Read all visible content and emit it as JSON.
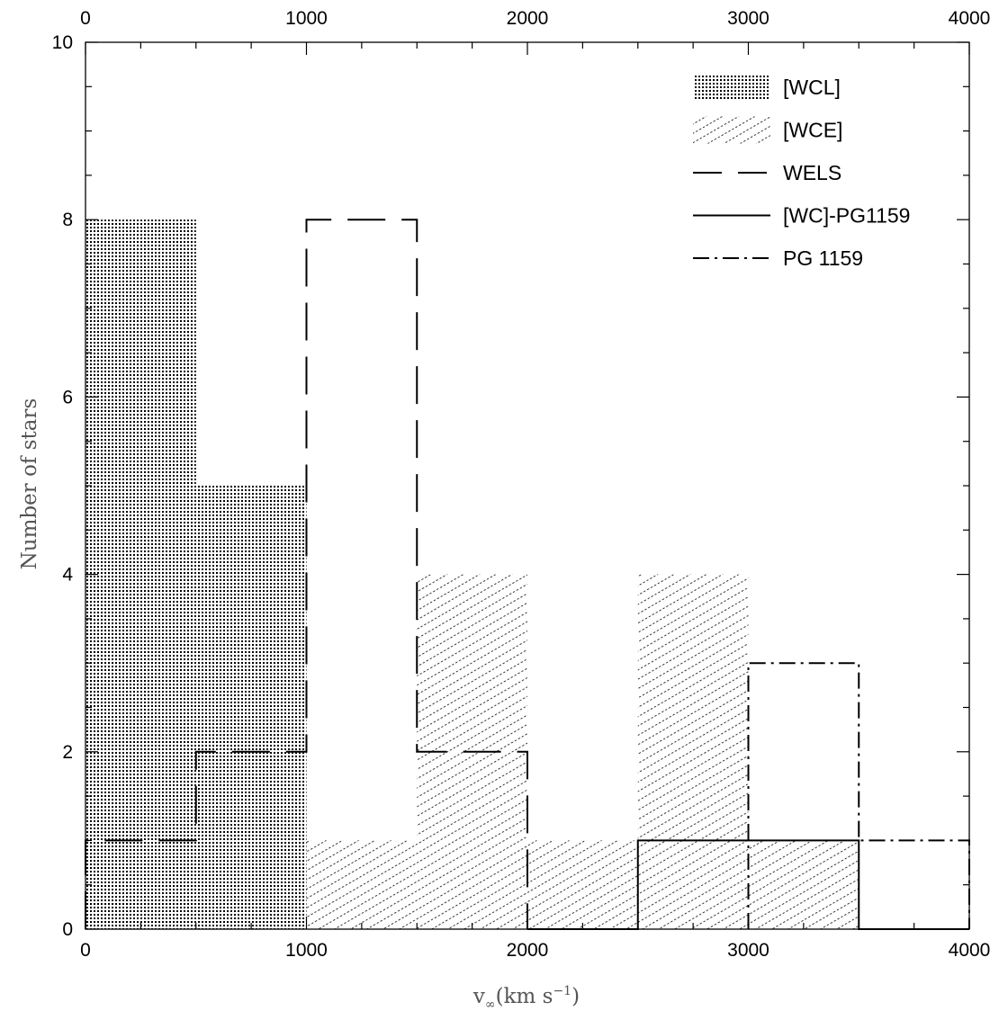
{
  "chart_data": {
    "type": "histogram",
    "bin_width": 500,
    "xlim": [
      0,
      4000
    ],
    "ylim": [
      0,
      10
    ],
    "x_ticks": [
      0,
      1000,
      2000,
      3000,
      4000
    ],
    "y_ticks": [
      0,
      2,
      4,
      6,
      8,
      10
    ],
    "x_minor_step": 250,
    "y_minor_step": 0.5,
    "xlabel": {
      "v": "v",
      "sub": "∞",
      "units": "(km s",
      "sup": "−1",
      "close": ")"
    },
    "ylabel": "Number of stars",
    "grid": false,
    "legend_position": "top-right",
    "series": [
      {
        "name": "[WCL]",
        "style": "dense-dots",
        "bins": [
          0,
          500,
          1000
        ],
        "values": [
          8,
          5
        ]
      },
      {
        "name": "[WCE]",
        "style": "diagonal-hatch",
        "bins": [
          1000,
          1500,
          2000,
          2500,
          3000,
          3500
        ],
        "values": [
          1,
          4,
          1,
          4,
          1
        ]
      },
      {
        "name": "WELS",
        "style": "long-dash",
        "bins": [
          0,
          500,
          1000,
          1500,
          2000
        ],
        "values": [
          1,
          2,
          8,
          2
        ]
      },
      {
        "name": "[WC]-PG1159",
        "style": "solid",
        "bins": [
          2000,
          2500,
          3000,
          3500,
          4000
        ],
        "values": [
          0,
          1,
          1,
          0
        ]
      },
      {
        "name": "PG 1159",
        "style": "dash-dot",
        "bins": [
          3000,
          3500,
          4000
        ],
        "values": [
          3,
          1
        ]
      }
    ]
  }
}
